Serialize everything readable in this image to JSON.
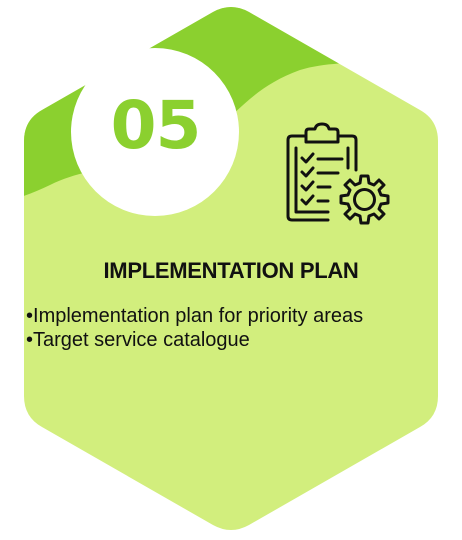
{
  "card": {
    "number": "05",
    "title": "IMPLEMENTATION PLAN",
    "bullets": [
      "Implementation plan for priority areas",
      "Target service catalogue"
    ],
    "icon": "clipboard-checklist-gear-icon"
  },
  "colors": {
    "hexagon_fill": "#d2ee7d",
    "accent": "#8bd02f",
    "text": "#111111",
    "circle": "#ffffff"
  }
}
